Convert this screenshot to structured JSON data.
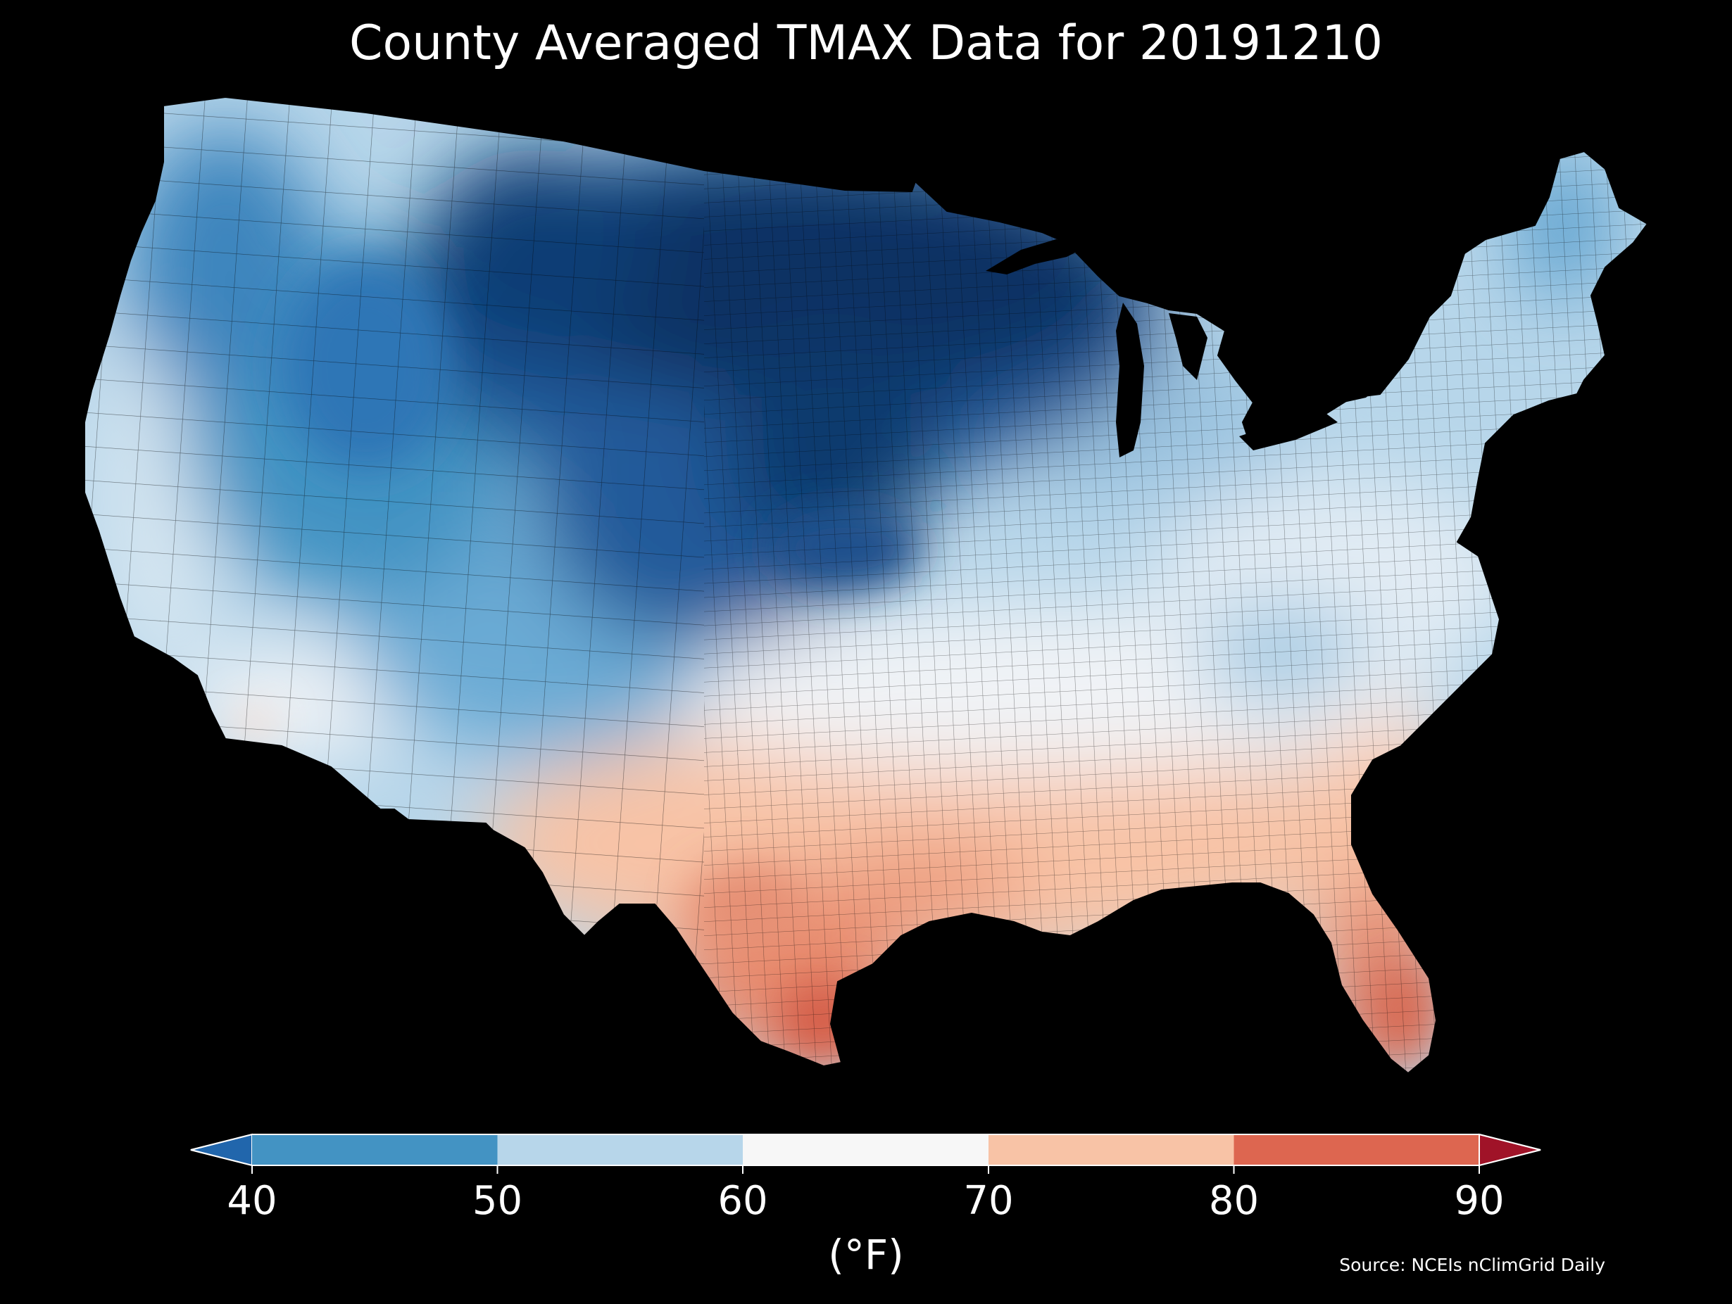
{
  "title": "County Averaged TMAX Data for 20191210",
  "colorbar": {
    "unit_label": "(°F)",
    "ticks": [
      "40",
      "50",
      "60",
      "70",
      "80",
      "90"
    ],
    "bins": [
      {
        "range": "<40",
        "color": "#2166ac"
      },
      {
        "range": "40-50",
        "color": "#4393c3"
      },
      {
        "range": "50-60",
        "color": "#b7d6ea"
      },
      {
        "range": "60-70",
        "color": "#f7f7f7"
      },
      {
        "range": "70-80",
        "color": "#f8c3a6"
      },
      {
        "range": "80-90",
        "color": "#dd6650"
      },
      {
        "range": ">90",
        "color": "#a01328"
      }
    ]
  },
  "source": "Source: NCEIs nClimGrid Daily",
  "map": {
    "region": "contiguous-united-states",
    "level": "county",
    "palette": {
      "very_cold": "#0a3263",
      "cold": "#2166ac",
      "cool": "#4393c3",
      "mild": "#b7d6ea",
      "neutral": "#f0f3f6",
      "warm": "#f8c3a6",
      "hot": "#dd6650"
    }
  }
}
